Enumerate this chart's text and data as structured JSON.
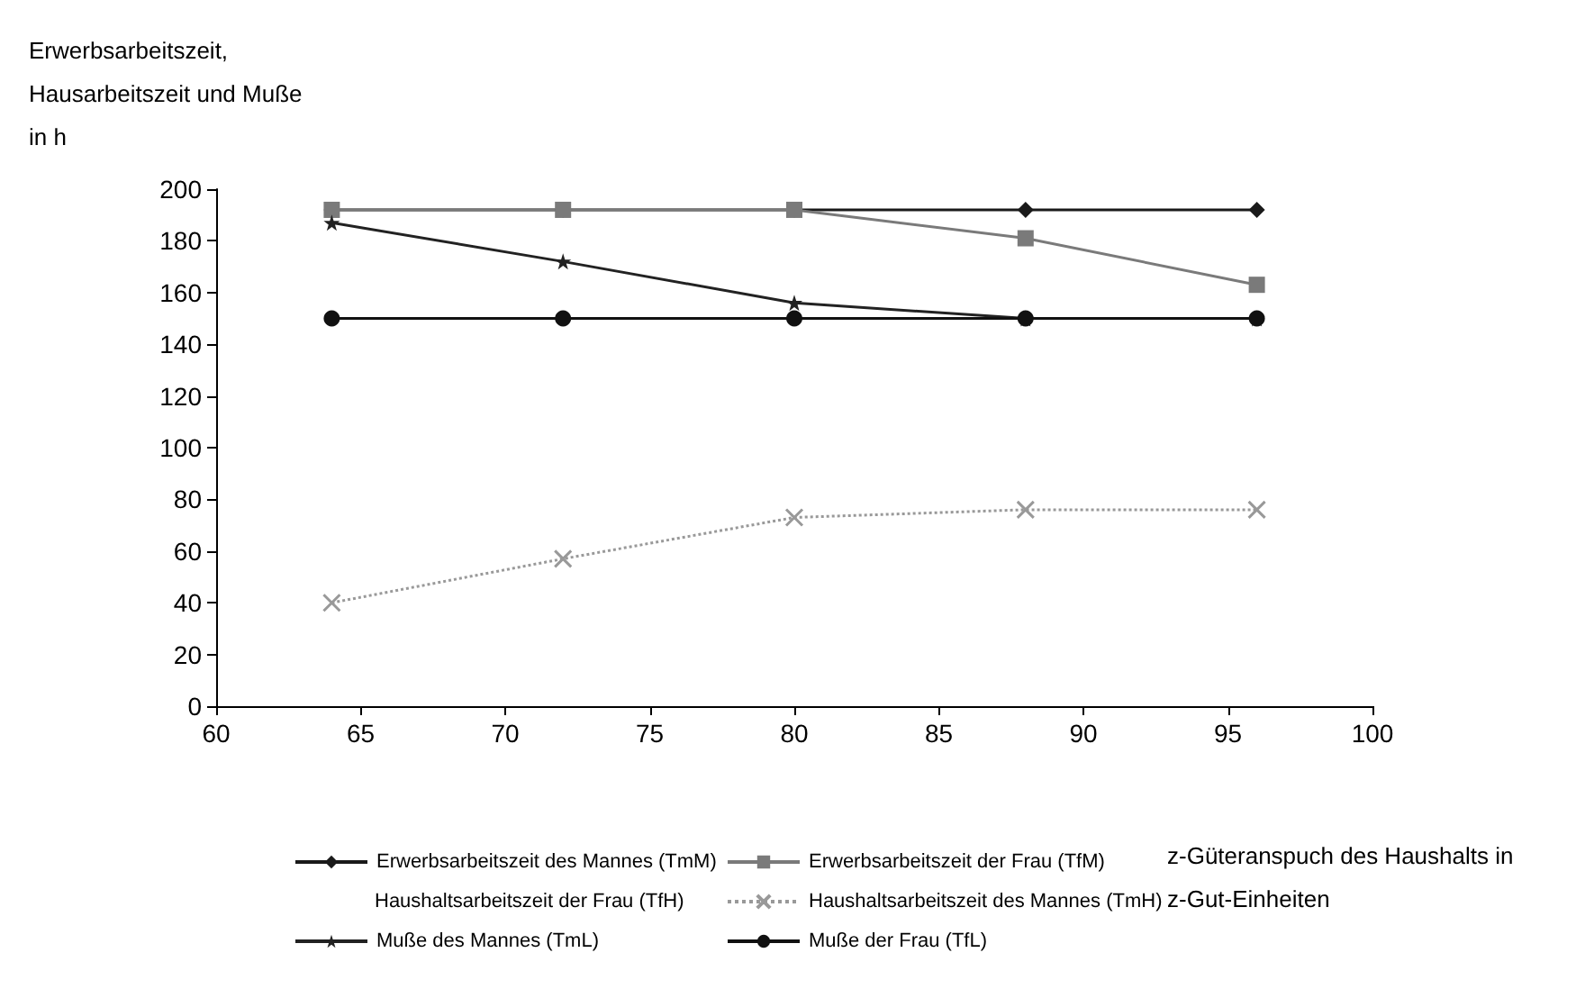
{
  "chart_data": {
    "type": "line",
    "ylabel": "Erwerbsarbeitszeit, Hausarbeitszeit und Muße in h",
    "xlabel": "z-Güteranspuch des Haushalts in z-Gut-Einheiten",
    "x": [
      64,
      72,
      80,
      88,
      96
    ],
    "series": [
      {
        "name": "Erwerbsarbeitszeit des Mannes (TmM)",
        "color": "#1a1a1a",
        "marker": "diamond",
        "line_style": "solid",
        "values": [
          192,
          192,
          192,
          192,
          192
        ]
      },
      {
        "name": "Erwerbsarbeitszeit der Frau (TfM)",
        "color": "#7a7a7a",
        "marker": "square",
        "line_style": "solid",
        "values": [
          192,
          192,
          192,
          181,
          163
        ]
      },
      {
        "name": "Haushaltsarbeitszeit der Frau (TfH)",
        "marker": "none",
        "values": [
          null,
          null,
          null,
          null,
          null
        ]
      },
      {
        "name": "Haushaltsarbeitszeit des Mannes (TmH)",
        "color": "#999999",
        "marker": "cross",
        "line_style": "dotted",
        "values": [
          40,
          57,
          73,
          76,
          76
        ]
      },
      {
        "name": "Muße des Mannes (TmL)",
        "color": "#222222",
        "marker": "star",
        "line_style": "solid",
        "values": [
          187,
          172,
          156,
          150,
          150
        ]
      },
      {
        "name": "Muße der Frau (TfL)",
        "color": "#111111",
        "marker": "circle",
        "line_style": "solid",
        "values": [
          150,
          150,
          150,
          150,
          150
        ]
      }
    ],
    "xlim": [
      60,
      100
    ],
    "xticks": [
      60,
      65,
      70,
      75,
      80,
      85,
      90,
      95,
      100
    ],
    "ylim": [
      0,
      200
    ],
    "yticks": [
      0,
      20,
      40,
      60,
      80,
      100,
      120,
      140,
      160,
      180,
      200
    ],
    "grid": false,
    "legend": "bottom"
  }
}
